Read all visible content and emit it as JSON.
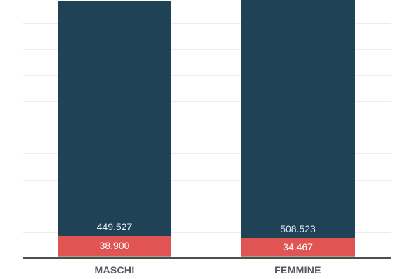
{
  "page": {
    "background": "#ffffff"
  },
  "chart_data": {
    "type": "bar",
    "stacked": true,
    "orientation": "vertical",
    "title": "",
    "xlabel": "",
    "ylabel": "",
    "legend": "none",
    "grid": "on",
    "y_gridline_interval": 50000,
    "y_axis_tick_labels": "none",
    "categories": [
      "MASCHI",
      "FEMMINE"
    ],
    "series": [
      {
        "name": "primary-segment",
        "color": "#1f4257",
        "values": [
          449527,
          508523
        ],
        "labels": [
          "449.527",
          "508.523"
        ],
        "label_color": "#e4edf3"
      },
      {
        "name": "secondary-segment",
        "color": "#e05454",
        "values": [
          38900,
          34467
        ],
        "labels": [
          "38.900",
          "34.467"
        ],
        "label_color": "#ffffff"
      },
      {
        "name": "baseline-strip-segment",
        "color": "#a9a188",
        "values": [
          4000,
          4000
        ],
        "labels": [
          "",
          ""
        ],
        "estimated": true
      }
    ],
    "colors": {
      "axis_line": "#4e4e4e",
      "gridline": "#ececec",
      "category_label": "#58585b"
    }
  }
}
